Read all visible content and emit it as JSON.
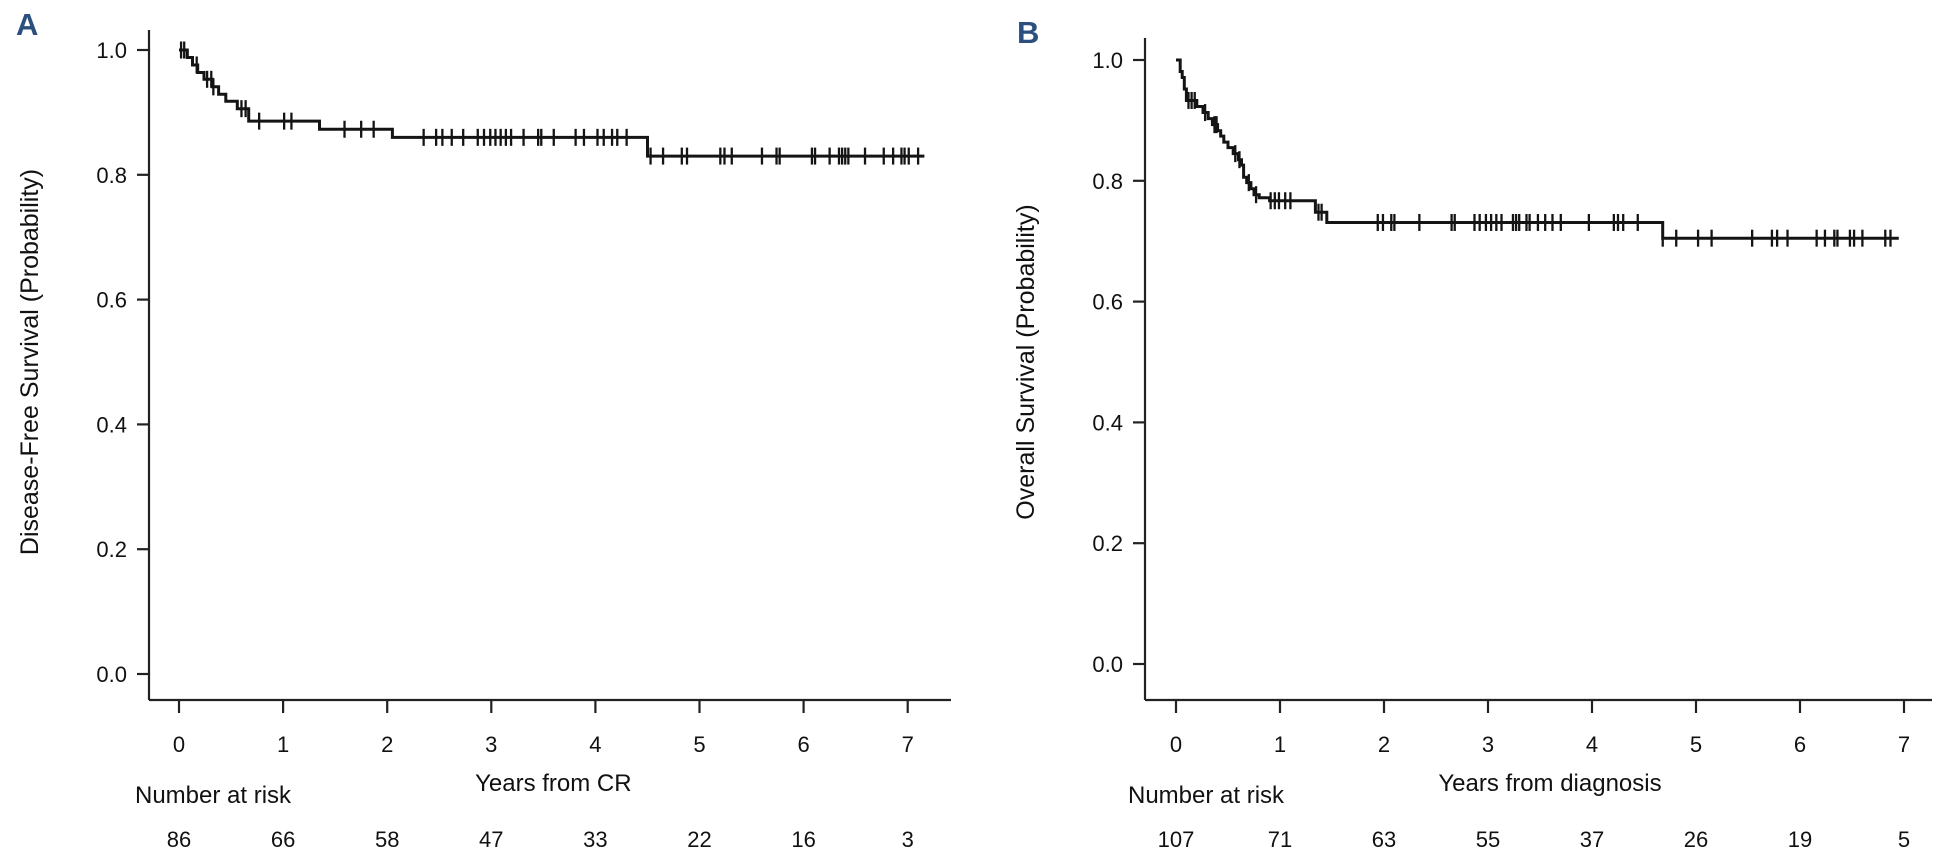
{
  "page": {
    "background": "#ffffff"
  },
  "chart_data": [
    {
      "panel_letter": "A",
      "panel_letter_color": "#2b4f7e",
      "type": "line",
      "subtype": "kaplan-meier-step",
      "line_color": "#141414",
      "ylabel": "Disease-Free Survival (Probability)",
      "xlabel": "Years from CR",
      "ytick_labels": [
        "1.0",
        "0.8",
        "0.6",
        "0.4",
        "0.2",
        "0.0"
      ],
      "xtick_labels": [
        "0",
        "1",
        "2",
        "3",
        "4",
        "5",
        "6",
        "7"
      ],
      "xlim": [
        0,
        7.4
      ],
      "ylim": [
        0,
        1.0
      ],
      "grid": false,
      "legend": "none",
      "steps": [
        [
          0,
          1.0
        ],
        [
          0.08,
          0.988
        ],
        [
          0.13,
          0.976
        ],
        [
          0.18,
          0.964
        ],
        [
          0.24,
          0.953
        ],
        [
          0.32,
          0.941
        ],
        [
          0.38,
          0.929
        ],
        [
          0.45,
          0.918
        ],
        [
          0.56,
          0.906
        ],
        [
          0.67,
          0.886
        ],
        [
          1.35,
          0.873
        ],
        [
          2.05,
          0.86
        ],
        [
          4.5,
          0.83
        ]
      ],
      "end_time": 7.16,
      "censors": [
        [
          0.02,
          1.0
        ],
        [
          0.05,
          1.0
        ],
        [
          0.17,
          0.976
        ],
        [
          0.27,
          0.953
        ],
        [
          0.31,
          0.953
        ],
        [
          0.33,
          0.941
        ],
        [
          0.6,
          0.906
        ],
        [
          0.64,
          0.906
        ],
        [
          0.77,
          0.886
        ],
        [
          1.01,
          0.886
        ],
        [
          1.08,
          0.886
        ],
        [
          1.59,
          0.873
        ],
        [
          1.75,
          0.873
        ],
        [
          1.87,
          0.873
        ],
        [
          2.35,
          0.86
        ],
        [
          2.47,
          0.86
        ],
        [
          2.53,
          0.86
        ],
        [
          2.62,
          0.86
        ],
        [
          2.73,
          0.86
        ],
        [
          2.87,
          0.86
        ],
        [
          2.93,
          0.86
        ],
        [
          2.99,
          0.86
        ],
        [
          3.04,
          0.86
        ],
        [
          3.09,
          0.86
        ],
        [
          3.14,
          0.86
        ],
        [
          3.19,
          0.86
        ],
        [
          3.31,
          0.86
        ],
        [
          3.45,
          0.86
        ],
        [
          3.48,
          0.86
        ],
        [
          3.6,
          0.86
        ],
        [
          3.81,
          0.86
        ],
        [
          3.89,
          0.86
        ],
        [
          4.02,
          0.86
        ],
        [
          4.08,
          0.86
        ],
        [
          4.16,
          0.86
        ],
        [
          4.21,
          0.86
        ],
        [
          4.3,
          0.86
        ],
        [
          4.53,
          0.83
        ],
        [
          4.65,
          0.83
        ],
        [
          4.83,
          0.83
        ],
        [
          4.88,
          0.83
        ],
        [
          5.2,
          0.83
        ],
        [
          5.24,
          0.83
        ],
        [
          5.31,
          0.83
        ],
        [
          5.6,
          0.83
        ],
        [
          5.74,
          0.83
        ],
        [
          5.77,
          0.83
        ],
        [
          6.08,
          0.83
        ],
        [
          6.11,
          0.83
        ],
        [
          6.25,
          0.83
        ],
        [
          6.34,
          0.83
        ],
        [
          6.37,
          0.83
        ],
        [
          6.4,
          0.83
        ],
        [
          6.43,
          0.83
        ],
        [
          6.59,
          0.83
        ],
        [
          6.77,
          0.83
        ],
        [
          6.86,
          0.83
        ],
        [
          6.94,
          0.83
        ],
        [
          6.97,
          0.83
        ],
        [
          7.01,
          0.83
        ],
        [
          7.1,
          0.83
        ]
      ],
      "risk_label": "Number at risk",
      "risk_times": [
        0,
        1,
        2,
        3,
        4,
        5,
        6,
        7
      ],
      "risk_counts": [
        "86",
        "66",
        "58",
        "47",
        "33",
        "22",
        "16",
        "3"
      ]
    },
    {
      "panel_letter": "B",
      "panel_letter_color": "#2b4f7e",
      "type": "line",
      "subtype": "kaplan-meier-step",
      "line_color": "#141414",
      "ylabel": "Overall Survival (Probability)",
      "xlabel": "Years from diagnosis",
      "ytick_labels": [
        "1.0",
        "0.8",
        "0.6",
        "0.4",
        "0.2",
        "0.0"
      ],
      "xtick_labels": [
        "0",
        "1",
        "2",
        "3",
        "4",
        "5",
        "6",
        "7"
      ],
      "xlim": [
        0,
        7.4
      ],
      "ylim": [
        0,
        1.0
      ],
      "grid": false,
      "legend": "none",
      "steps": [
        [
          0,
          1.0
        ],
        [
          0.04,
          0.981
        ],
        [
          0.06,
          0.971
        ],
        [
          0.08,
          0.952
        ],
        [
          0.1,
          0.933
        ],
        [
          0.2,
          0.923
        ],
        [
          0.26,
          0.913
        ],
        [
          0.31,
          0.903
        ],
        [
          0.35,
          0.893
        ],
        [
          0.4,
          0.883
        ],
        [
          0.43,
          0.874
        ],
        [
          0.46,
          0.864
        ],
        [
          0.5,
          0.855
        ],
        [
          0.55,
          0.845
        ],
        [
          0.6,
          0.835
        ],
        [
          0.63,
          0.826
        ],
        [
          0.65,
          0.806
        ],
        [
          0.68,
          0.797
        ],
        [
          0.72,
          0.787
        ],
        [
          0.75,
          0.777
        ],
        [
          0.8,
          0.772
        ],
        [
          0.9,
          0.767
        ],
        [
          1.34,
          0.748
        ],
        [
          1.45,
          0.731
        ],
        [
          4.68,
          0.705
        ]
      ],
      "end_time": 6.95,
      "censors": [
        [
          0.12,
          0.933
        ],
        [
          0.15,
          0.933
        ],
        [
          0.18,
          0.933
        ],
        [
          0.28,
          0.913
        ],
        [
          0.37,
          0.893
        ],
        [
          0.39,
          0.893
        ],
        [
          0.57,
          0.845
        ],
        [
          0.61,
          0.835
        ],
        [
          0.7,
          0.797
        ],
        [
          0.77,
          0.777
        ],
        [
          0.91,
          0.767
        ],
        [
          0.95,
          0.767
        ],
        [
          0.99,
          0.767
        ],
        [
          1.05,
          0.767
        ],
        [
          1.1,
          0.767
        ],
        [
          1.37,
          0.748
        ],
        [
          1.4,
          0.748
        ],
        [
          1.94,
          0.731
        ],
        [
          1.99,
          0.731
        ],
        [
          2.07,
          0.731
        ],
        [
          2.1,
          0.731
        ],
        [
          2.34,
          0.731
        ],
        [
          2.65,
          0.731
        ],
        [
          2.68,
          0.731
        ],
        [
          2.87,
          0.731
        ],
        [
          2.92,
          0.731
        ],
        [
          2.98,
          0.731
        ],
        [
          3.03,
          0.731
        ],
        [
          3.08,
          0.731
        ],
        [
          3.13,
          0.731
        ],
        [
          3.24,
          0.731
        ],
        [
          3.27,
          0.731
        ],
        [
          3.3,
          0.731
        ],
        [
          3.37,
          0.731
        ],
        [
          3.4,
          0.731
        ],
        [
          3.48,
          0.731
        ],
        [
          3.55,
          0.731
        ],
        [
          3.62,
          0.731
        ],
        [
          3.7,
          0.731
        ],
        [
          3.97,
          0.731
        ],
        [
          4.21,
          0.731
        ],
        [
          4.25,
          0.731
        ],
        [
          4.3,
          0.731
        ],
        [
          4.44,
          0.731
        ],
        [
          4.68,
          0.705
        ],
        [
          4.81,
          0.705
        ],
        [
          5.02,
          0.705
        ],
        [
          5.15,
          0.705
        ],
        [
          5.54,
          0.705
        ],
        [
          5.73,
          0.705
        ],
        [
          5.78,
          0.705
        ],
        [
          5.88,
          0.705
        ],
        [
          6.16,
          0.705
        ],
        [
          6.24,
          0.705
        ],
        [
          6.33,
          0.705
        ],
        [
          6.36,
          0.705
        ],
        [
          6.48,
          0.705
        ],
        [
          6.52,
          0.705
        ],
        [
          6.6,
          0.705
        ],
        [
          6.82,
          0.705
        ],
        [
          6.87,
          0.705
        ]
      ],
      "risk_label": "Number at risk",
      "risk_times": [
        0,
        1,
        2,
        3,
        4,
        5,
        6,
        7
      ],
      "risk_counts": [
        "107",
        "71",
        "63",
        "55",
        "37",
        "26",
        "19",
        "5"
      ]
    }
  ]
}
